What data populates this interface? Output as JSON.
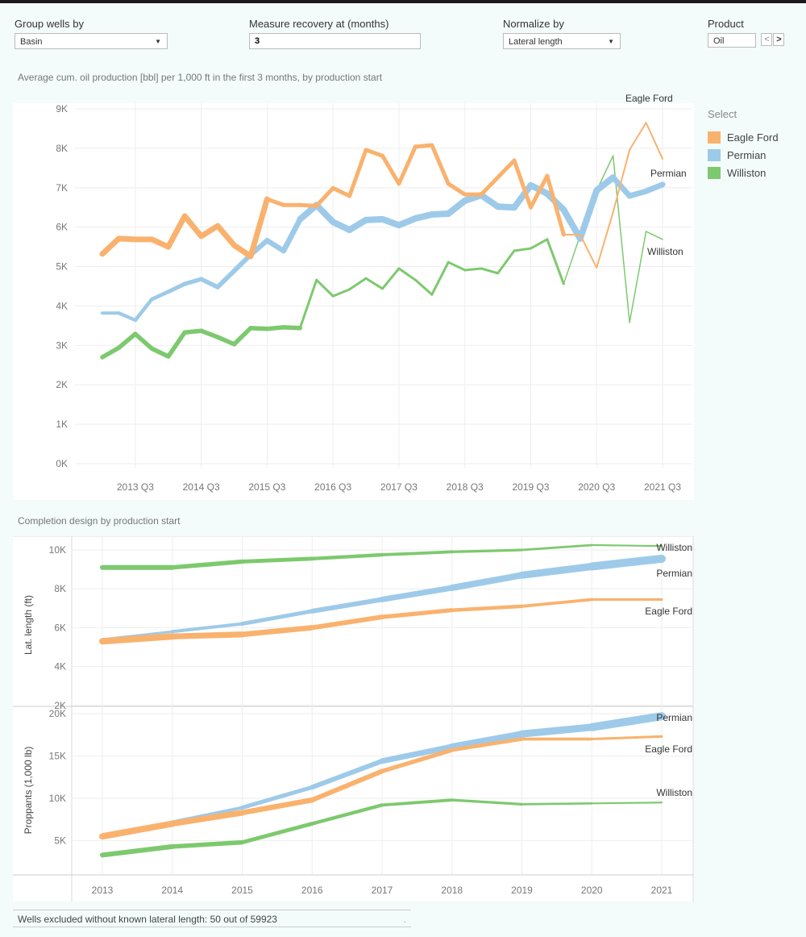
{
  "controls": {
    "group_by": {
      "label": "Group wells by",
      "value": "Basin"
    },
    "recovery": {
      "label": "Measure recovery at (months)",
      "value": "3"
    },
    "normalize": {
      "label": "Normalize by",
      "value": "Lateral length"
    },
    "product": {
      "label": "Product",
      "value": "Oil",
      "prev": "<",
      "next": ">"
    }
  },
  "legend": {
    "title": "Select",
    "items": [
      {
        "name": "Eagle Ford",
        "color": "#f9b26e"
      },
      {
        "name": "Permian",
        "color": "#9ecae9"
      },
      {
        "name": "Williston",
        "color": "#7dc96e"
      }
    ]
  },
  "footer": {
    "text": "Wells excluded without known lateral length: 50 out of 59923",
    "marker": "."
  },
  "chart_data": [
    {
      "type": "line",
      "title": "Average cum. oil production [bbl] per 1,000 ft in the first 3 months, by production start",
      "xlabel": "",
      "ylabel": "",
      "ylim": [
        0,
        9000
      ],
      "yticks": [
        "0K",
        "1K",
        "2K",
        "3K",
        "4K",
        "5K",
        "6K",
        "7K",
        "8K",
        "9K"
      ],
      "xticks": [
        "2013 Q3",
        "2014 Q3",
        "2015 Q3",
        "2016 Q3",
        "2017 Q3",
        "2018 Q3",
        "2019 Q3",
        "2020 Q3",
        "2021 Q3"
      ],
      "x_start": "2013 Q1",
      "x_end": "2021 Q3",
      "grid": true,
      "series": [
        {
          "name": "Eagle Ford",
          "color": "#f9b26e",
          "end_label": "Eagle Ford",
          "values": [
            5320,
            5710,
            5690,
            5690,
            5500,
            6280,
            5770,
            6030,
            5540,
            5260,
            6710,
            6560,
            6560,
            6540,
            6990,
            6790,
            7960,
            7810,
            7100,
            8040,
            8080,
            7100,
            6830,
            6830,
            7260,
            7690,
            6500,
            7300,
            5810,
            5810,
            4970,
            6380,
            7960,
            8650,
            7730
          ]
        },
        {
          "name": "Permian",
          "color": "#9ecae9",
          "end_label": "Permian",
          "values": [
            3820,
            3820,
            3640,
            4170,
            4360,
            4560,
            4680,
            4480,
            4890,
            5300,
            5660,
            5400,
            6200,
            6560,
            6130,
            5930,
            6180,
            6200,
            6050,
            6220,
            6320,
            6340,
            6670,
            6810,
            6520,
            6500,
            7060,
            6850,
            6440,
            5710,
            6930,
            7260,
            6790,
            6910,
            7080
          ]
        },
        {
          "name": "Williston",
          "color": "#7dc96e",
          "end_label": "Williston",
          "values": [
            2700,
            2940,
            3290,
            2920,
            2720,
            3330,
            3370,
            3210,
            3030,
            3440,
            3420,
            3460,
            3440,
            4660,
            4250,
            4420,
            4700,
            4440,
            4950,
            4660,
            4290,
            5110,
            4910,
            4950,
            4830,
            5400,
            5460,
            5690,
            4560,
            5790,
            6930,
            7810,
            3580,
            5890,
            5690
          ]
        }
      ]
    },
    {
      "type": "line",
      "title": "Completion design by production start",
      "ylabel": "Lat. length (ft)",
      "ylim": [
        2000,
        10000
      ],
      "yticks": [
        "2K",
        "4K",
        "6K",
        "8K",
        "10K"
      ],
      "categories": [
        "2013",
        "2014",
        "2015",
        "2016",
        "2017",
        "2018",
        "2019",
        "2020",
        "2021"
      ],
      "grid": true,
      "series": [
        {
          "name": "Williston",
          "color": "#7dc96e",
          "end_label": "Williston",
          "values": [
            9100,
            9100,
            9400,
            9550,
            9750,
            9900,
            10000,
            10250,
            10200
          ]
        },
        {
          "name": "Permian",
          "color": "#9ecae9",
          "end_label": "Permian",
          "values": [
            5400,
            5800,
            6200,
            6850,
            7450,
            8050,
            8700,
            9150,
            9550
          ]
        },
        {
          "name": "Eagle Ford",
          "color": "#f9b26e",
          "end_label": "Eagle Ford",
          "values": [
            5300,
            5550,
            5650,
            6000,
            6550,
            6900,
            7100,
            7450,
            7450
          ]
        }
      ]
    },
    {
      "type": "line",
      "ylabel": "Proppants (1,000 lb)",
      "ylim": [
        0,
        20000
      ],
      "yticks": [
        "5K",
        "10K",
        "15K",
        "20K"
      ],
      "categories": [
        "2013",
        "2014",
        "2015",
        "2016",
        "2017",
        "2018",
        "2019",
        "2020",
        "2021"
      ],
      "xlabel": "",
      "grid": true,
      "series": [
        {
          "name": "Permian",
          "color": "#9ecae9",
          "end_label": "Permian",
          "values": [
            5600,
            7200,
            8900,
            11300,
            14400,
            16100,
            17600,
            18400,
            19700
          ]
        },
        {
          "name": "Eagle Ford",
          "color": "#f9b26e",
          "end_label": "Eagle Ford",
          "values": [
            5500,
            7000,
            8300,
            9800,
            13200,
            15700,
            17000,
            17000,
            17300
          ]
        },
        {
          "name": "Williston",
          "color": "#7dc96e",
          "end_label": "Williston",
          "values": [
            3300,
            4300,
            4800,
            7000,
            9200,
            9800,
            9300,
            9400,
            9500
          ]
        }
      ]
    }
  ]
}
